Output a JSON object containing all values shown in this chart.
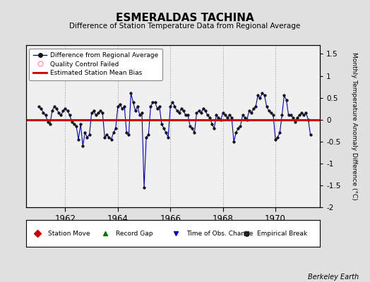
{
  "title": "ESMERALDAS TACHINA",
  "subtitle": "Difference of Station Temperature Data from Regional Average",
  "ylabel": "Monthly Temperature Anomaly Difference (°C)",
  "credit": "Berkeley Earth",
  "xlim": [
    1960.5,
    1971.7
  ],
  "ylim": [
    -2.0,
    1.7
  ],
  "yticks": [
    -2.0,
    -1.5,
    -1.0,
    -0.5,
    0.0,
    0.5,
    1.0,
    1.5
  ],
  "xticks": [
    1962,
    1964,
    1966,
    1968,
    1970
  ],
  "bias": 0.0,
  "bg_color": "#e0e0e0",
  "plot_bg_color": "#f0f0f0",
  "line_color": "#0000cc",
  "bias_color": "#cc0000",
  "marker_color": "#111111",
  "time_series": {
    "years": [
      1961.0,
      1961.083,
      1961.167,
      1961.25,
      1961.333,
      1961.417,
      1961.5,
      1961.583,
      1961.667,
      1961.75,
      1961.833,
      1961.917,
      1962.0,
      1962.083,
      1962.167,
      1962.25,
      1962.333,
      1962.417,
      1962.5,
      1962.583,
      1962.667,
      1962.75,
      1962.833,
      1962.917,
      1963.0,
      1963.083,
      1963.167,
      1963.25,
      1963.333,
      1963.417,
      1963.5,
      1963.583,
      1963.667,
      1963.75,
      1963.833,
      1963.917,
      1964.0,
      1964.083,
      1964.167,
      1964.25,
      1964.333,
      1964.417,
      1964.5,
      1964.583,
      1964.667,
      1964.75,
      1964.833,
      1964.917,
      1965.0,
      1965.083,
      1965.167,
      1965.25,
      1965.333,
      1965.417,
      1965.5,
      1965.583,
      1965.667,
      1965.75,
      1965.833,
      1965.917,
      1966.0,
      1966.083,
      1966.167,
      1966.25,
      1966.333,
      1966.417,
      1966.5,
      1966.583,
      1966.667,
      1966.75,
      1966.833,
      1966.917,
      1967.0,
      1967.083,
      1967.167,
      1967.25,
      1967.333,
      1967.417,
      1967.5,
      1967.583,
      1967.667,
      1967.75,
      1967.833,
      1967.917,
      1968.0,
      1968.083,
      1968.167,
      1968.25,
      1968.333,
      1968.417,
      1968.5,
      1968.583,
      1968.667,
      1968.75,
      1968.833,
      1968.917,
      1969.0,
      1969.083,
      1969.167,
      1969.25,
      1969.333,
      1969.417,
      1969.5,
      1969.583,
      1969.667,
      1969.75,
      1969.833,
      1969.917,
      1970.0,
      1970.083,
      1970.167,
      1970.25,
      1970.333,
      1970.417,
      1970.5,
      1970.583,
      1970.667,
      1970.75,
      1970.833,
      1970.917,
      1971.0,
      1971.083,
      1971.167,
      1971.25,
      1971.333
    ],
    "values": [
      0.3,
      0.25,
      0.15,
      0.1,
      -0.05,
      -0.1,
      0.2,
      0.3,
      0.25,
      0.15,
      0.1,
      0.2,
      0.25,
      0.2,
      0.1,
      -0.05,
      -0.1,
      -0.15,
      -0.45,
      -0.1,
      -0.6,
      -0.3,
      -0.4,
      -0.35,
      0.15,
      0.2,
      0.1,
      0.15,
      0.2,
      0.15,
      -0.4,
      -0.35,
      -0.4,
      -0.45,
      -0.3,
      -0.2,
      0.3,
      0.35,
      0.25,
      0.3,
      -0.3,
      -0.35,
      0.6,
      0.4,
      0.2,
      0.3,
      0.1,
      0.15,
      -1.55,
      -0.4,
      -0.35,
      0.3,
      0.4,
      0.4,
      0.25,
      0.3,
      -0.1,
      -0.2,
      -0.3,
      -0.4,
      0.3,
      0.4,
      0.3,
      0.2,
      0.15,
      0.25,
      0.2,
      0.1,
      0.1,
      -0.15,
      -0.2,
      -0.3,
      0.15,
      0.2,
      0.15,
      0.25,
      0.2,
      0.1,
      0.05,
      -0.1,
      -0.2,
      0.1,
      0.05,
      0.0,
      0.15,
      0.1,
      0.05,
      0.1,
      0.05,
      -0.5,
      -0.3,
      -0.2,
      -0.15,
      0.1,
      0.05,
      0.0,
      0.2,
      0.15,
      0.25,
      0.3,
      0.55,
      0.5,
      0.6,
      0.55,
      0.3,
      0.2,
      0.15,
      0.1,
      -0.45,
      -0.4,
      -0.3,
      0.1,
      0.55,
      0.45,
      0.1,
      0.1,
      0.05,
      -0.05,
      0.05,
      0.1,
      0.15,
      0.1,
      0.15,
      0.0,
      -0.35
    ]
  },
  "bottom_legend": {
    "items": [
      {
        "marker": "D",
        "color": "#cc0000",
        "label": "Station Move"
      },
      {
        "marker": "^",
        "color": "#007700",
        "label": "Record Gap"
      },
      {
        "marker": "v",
        "color": "#0000cc",
        "label": "Time of Obs. Change"
      },
      {
        "marker": "s",
        "color": "#333333",
        "label": "Empirical Break"
      }
    ]
  }
}
